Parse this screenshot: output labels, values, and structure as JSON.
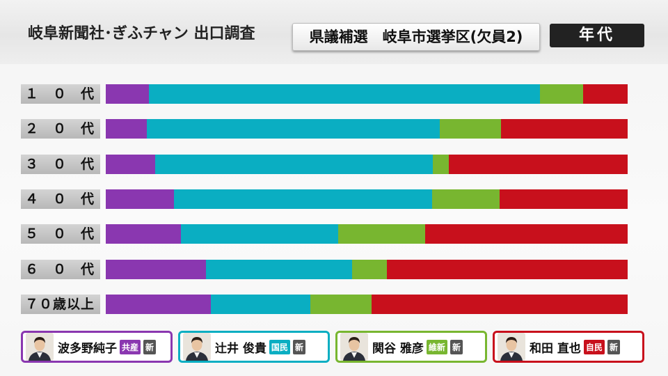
{
  "header": {
    "source": "岐阜新聞社･ぎふチャン 出口調査",
    "election": "県議補選　岐阜市選挙区(欠員2)",
    "category": "年代"
  },
  "colors": {
    "purple": "#8a37b0",
    "cyan": "#0aaec2",
    "green": "#78b630",
    "red": "#c8101c"
  },
  "legend": [
    {
      "name": "波多野純子",
      "party": "共産",
      "status": "新",
      "color": "#8a37b0",
      "icon": "candidate-photo"
    },
    {
      "name": "辻井 俊貴",
      "party": "国民",
      "status": "新",
      "color": "#0aaec2",
      "icon": "candidate-photo"
    },
    {
      "name": "関谷 雅彦",
      "party": "維新",
      "status": "新",
      "color": "#78b630",
      "icon": "candidate-photo"
    },
    {
      "name": "和田 直也",
      "party": "自民",
      "status": "新",
      "color": "#c8101c",
      "icon": "candidate-photo"
    }
  ],
  "chart_data": {
    "type": "bar",
    "orientation": "horizontal",
    "stacked": "100%",
    "title": "年代",
    "categories": [
      "１　０　代",
      "２　０　代",
      "３　０　代",
      "４　０　代",
      "５　０　代",
      "６　０　代",
      "７０歳以上"
    ],
    "series": [
      {
        "name": "波多野純子",
        "color": "#8a37b0",
        "values": [
          8.3,
          7.9,
          9.5,
          13.0,
          14.4,
          19.2,
          20.1
        ]
      },
      {
        "name": "辻井 俊貴",
        "color": "#0aaec2",
        "values": [
          74.9,
          56.1,
          53.1,
          49.5,
          30.1,
          28.0,
          19.1
        ]
      },
      {
        "name": "関谷 雅彦",
        "color": "#78b630",
        "values": [
          8.3,
          11.7,
          3.1,
          12.9,
          16.7,
          6.7,
          11.7
        ]
      },
      {
        "name": "和田 直也",
        "color": "#c8101c",
        "values": [
          8.5,
          24.3,
          34.3,
          24.6,
          38.8,
          46.1,
          49.1
        ]
      }
    ],
    "xlim": [
      0,
      100
    ],
    "grid": false,
    "legend": "bottom"
  }
}
